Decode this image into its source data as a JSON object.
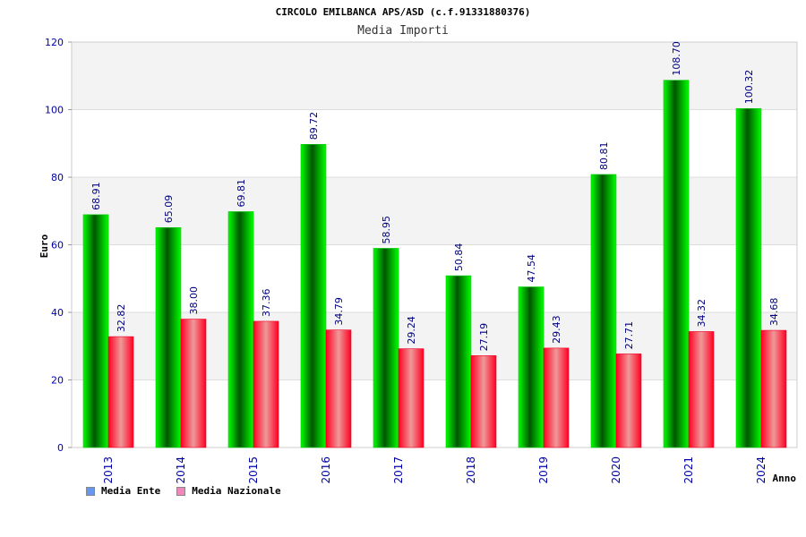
{
  "chart_data": {
    "type": "bar",
    "title": "CIRCOLO EMILBANCA APS/ASD (c.f.91331880376)",
    "subtitle": "Media Importi",
    "xlabel": "Anno",
    "ylabel": "Euro",
    "ylim": [
      0,
      120
    ],
    "yticks": [
      0,
      20,
      40,
      60,
      80,
      100,
      120
    ],
    "grid": true,
    "legend_position": "bottom-left",
    "categories": [
      "2013",
      "2014",
      "2015",
      "2016",
      "2017",
      "2018",
      "2019",
      "2020",
      "2021",
      "2024"
    ],
    "series": [
      {
        "name": "Media Ente",
        "values": [
          68.91,
          65.09,
          69.81,
          89.72,
          58.95,
          50.84,
          47.54,
          80.81,
          108.7,
          100.32
        ],
        "labels": [
          "68.91",
          "65.09",
          "69.81",
          "89.72",
          "58.95",
          "50.84",
          "47.54",
          "80.81",
          "108.70",
          "100.32"
        ],
        "color": "#00cc00",
        "legend_color": "#6699ee"
      },
      {
        "name": "Media Nazionale",
        "values": [
          32.82,
          38.0,
          37.36,
          34.79,
          29.24,
          27.19,
          29.43,
          27.71,
          34.32,
          34.68
        ],
        "labels": [
          "32.82",
          "38.00",
          "37.36",
          "34.79",
          "29.24",
          "27.19",
          "29.43",
          "27.71",
          "34.32",
          "34.68"
        ],
        "color": "#ee0022",
        "legend_color": "#ee88bb"
      }
    ]
  }
}
